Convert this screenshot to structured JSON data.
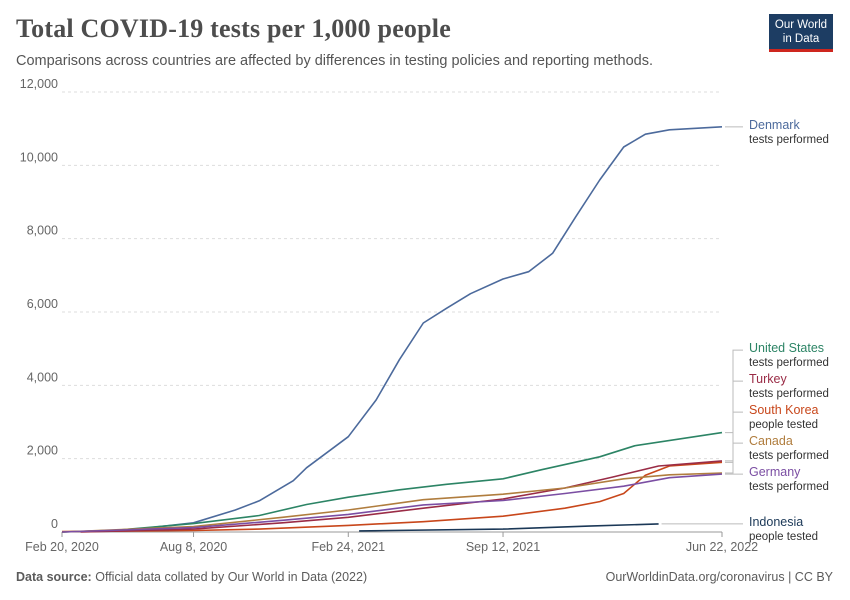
{
  "header": {
    "title": "Total COVID-19 tests per 1,000 people",
    "subtitle": "Comparisons across countries are affected by differences in testing policies and reporting methods."
  },
  "logo": {
    "line1": "Our World",
    "line2": "in Data"
  },
  "footer": {
    "source_label": "Data source:",
    "source_text": "Official data collated by Our World in Data (2022)",
    "link": "OurWorldinData.org/coronavirus | CC BY"
  },
  "chart_data": {
    "type": "line",
    "title": "Total COVID-19 tests per 1,000 people",
    "xlabel": "",
    "ylabel": "",
    "x_ticks": [
      "Feb 20, 2020",
      "Aug 8, 2020",
      "Feb 24, 2021",
      "Sep 12, 2021",
      "Jun 22, 2022"
    ],
    "y_ticks": [
      0,
      2000,
      4000,
      6000,
      8000,
      10000,
      12000
    ],
    "y_tick_labels": [
      "0",
      "2,000",
      "4,000",
      "6,000",
      "8,000",
      "10,000",
      "12,000"
    ],
    "xlim": [
      "2020-02-20",
      "2022-06-22"
    ],
    "ylim": [
      0,
      12000
    ],
    "grid": "horizontal dashed",
    "legend": "right, line-end labels",
    "series": [
      {
        "name": "Denmark",
        "measure": "tests performed",
        "color": "#4c6a9c",
        "points": [
          [
            "2020-02-20",
            0
          ],
          [
            "2020-05-15",
            50
          ],
          [
            "2020-08-08",
            250
          ],
          [
            "2020-10-01",
            600
          ],
          [
            "2020-11-01",
            850
          ],
          [
            "2020-12-15",
            1400
          ],
          [
            "2021-01-01",
            1750
          ],
          [
            "2021-02-24",
            2600
          ],
          [
            "2021-04-01",
            3600
          ],
          [
            "2021-05-01",
            4700
          ],
          [
            "2021-06-01",
            5700
          ],
          [
            "2021-07-01",
            6100
          ],
          [
            "2021-08-01",
            6500
          ],
          [
            "2021-09-12",
            6900
          ],
          [
            "2021-10-15",
            7100
          ],
          [
            "2021-11-15",
            7600
          ],
          [
            "2021-12-15",
            8600
          ],
          [
            "2022-01-15",
            9600
          ],
          [
            "2022-02-15",
            10500
          ],
          [
            "2022-03-15",
            10850
          ],
          [
            "2022-04-15",
            10970
          ],
          [
            "2022-06-22",
            11050
          ]
        ]
      },
      {
        "name": "United States",
        "measure": "tests performed",
        "color": "#2c8465",
        "points": [
          [
            "2020-02-20",
            0
          ],
          [
            "2020-05-01",
            50
          ],
          [
            "2020-08-08",
            230
          ],
          [
            "2020-11-01",
            450
          ],
          [
            "2021-01-01",
            750
          ],
          [
            "2021-02-24",
            950
          ],
          [
            "2021-05-01",
            1150
          ],
          [
            "2021-07-01",
            1300
          ],
          [
            "2021-09-12",
            1450
          ],
          [
            "2021-11-01",
            1700
          ],
          [
            "2022-01-15",
            2050
          ],
          [
            "2022-03-01",
            2350
          ],
          [
            "2022-06-22",
            2710
          ]
        ]
      },
      {
        "name": "South Korea",
        "measure": "people tested",
        "color": "#c8471b",
        "points": [
          [
            "2020-02-20",
            10
          ],
          [
            "2020-08-08",
            40
          ],
          [
            "2020-11-01",
            80
          ],
          [
            "2021-02-24",
            180
          ],
          [
            "2021-06-01",
            280
          ],
          [
            "2021-09-12",
            430
          ],
          [
            "2021-12-01",
            650
          ],
          [
            "2022-01-15",
            830
          ],
          [
            "2022-02-15",
            1050
          ],
          [
            "2022-03-15",
            1550
          ],
          [
            "2022-04-15",
            1800
          ],
          [
            "2022-06-22",
            1900
          ]
        ]
      },
      {
        "name": "Turkey",
        "measure": "tests performed",
        "color": "#9a2c46",
        "points": [
          [
            "2020-03-15",
            0
          ],
          [
            "2020-08-08",
            80
          ],
          [
            "2020-12-01",
            250
          ],
          [
            "2021-02-24",
            400
          ],
          [
            "2021-06-01",
            650
          ],
          [
            "2021-09-12",
            900
          ],
          [
            "2021-12-01",
            1200
          ],
          [
            "2022-02-01",
            1500
          ],
          [
            "2022-04-01",
            1800
          ],
          [
            "2022-06-22",
            1940
          ]
        ]
      },
      {
        "name": "Canada",
        "measure": "tests performed",
        "color": "#b07d3e",
        "points": [
          [
            "2020-02-20",
            0
          ],
          [
            "2020-08-08",
            150
          ],
          [
            "2020-12-01",
            400
          ],
          [
            "2021-02-24",
            600
          ],
          [
            "2021-06-01",
            880
          ],
          [
            "2021-09-12",
            1030
          ],
          [
            "2021-12-01",
            1200
          ],
          [
            "2022-02-15",
            1450
          ],
          [
            "2022-04-15",
            1560
          ],
          [
            "2022-06-22",
            1610
          ]
        ]
      },
      {
        "name": "Germany",
        "measure": "tests performed",
        "color": "#7b4ea3",
        "points": [
          [
            "2020-02-20",
            0
          ],
          [
            "2020-08-08",
            120
          ],
          [
            "2020-12-01",
            320
          ],
          [
            "2021-02-24",
            480
          ],
          [
            "2021-06-01",
            740
          ],
          [
            "2021-09-12",
            860
          ],
          [
            "2021-12-01",
            1050
          ],
          [
            "2022-02-15",
            1250
          ],
          [
            "2022-04-15",
            1480
          ],
          [
            "2022-06-22",
            1580
          ]
        ]
      },
      {
        "name": "Indonesia",
        "measure": "people tested",
        "color": "#1b3857",
        "points": [
          [
            "2021-03-10",
            30
          ],
          [
            "2021-09-12",
            80
          ],
          [
            "2022-01-01",
            160
          ],
          [
            "2022-04-01",
            220
          ]
        ]
      }
    ]
  }
}
